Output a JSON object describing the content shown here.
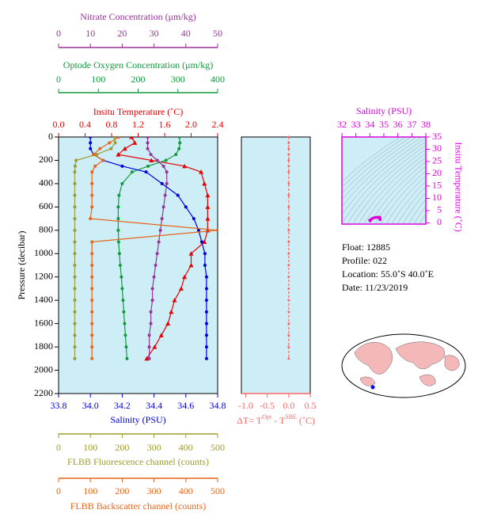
{
  "chart_data": [
    {
      "type": "profile",
      "y_label": "Pressure (decibar)",
      "ylim": [
        0,
        2200
      ],
      "y_inverted": true,
      "yticks": [
        0,
        200,
        400,
        600,
        800,
        1000,
        1200,
        1400,
        1600,
        1800,
        2000,
        2200
      ],
      "background": "#cdeef6",
      "y": [
        0,
        50,
        100,
        150,
        200,
        250,
        300,
        400,
        500,
        600,
        700,
        800,
        900,
        1000,
        1100,
        1200,
        1300,
        1400,
        1500,
        1600,
        1700,
        1800,
        1900
      ],
      "series": [
        {
          "label": "Insitu Temperature (˚C)",
          "side": "top",
          "color": "#e60000",
          "marker": "triangle",
          "xlim": [
            0,
            2.4
          ],
          "xticks": [
            {
              "value": 0,
              "label": "0.0"
            },
            0.4,
            0.8,
            1.2,
            1.6,
            {
              "value": 2,
              "label": "2.0"
            },
            2.4
          ],
          "values": [
            1.1,
            1.15,
            1.0,
            0.9,
            1.4,
            1.9,
            2.15,
            2.2,
            2.25,
            2.25,
            2.25,
            2.25,
            2.2,
            2.0,
            2.0,
            1.9,
            1.85,
            1.75,
            1.7,
            1.65,
            1.55,
            1.45,
            1.33
          ]
        },
        {
          "label": "Optode Oxygen Concentration (μm/kg)",
          "side": "top",
          "color": "#129a3c",
          "marker": "circle",
          "xlim": [
            0,
            400
          ],
          "xticks": [
            0,
            100,
            200,
            300,
            400
          ],
          "values": [
            304,
            305,
            303,
            295,
            270,
            225,
            185,
            160,
            152,
            150,
            150,
            150,
            151,
            153,
            155,
            158,
            160,
            162,
            164,
            166,
            168,
            170,
            172
          ]
        },
        {
          "label": "Nitrate Concentration (μm/kg)",
          "side": "top",
          "color": "#993399",
          "marker": "circle",
          "xlim": [
            0,
            50
          ],
          "xticks": [
            0,
            10,
            20,
            30,
            40,
            50
          ],
          "values": [
            28,
            28,
            28,
            29,
            31,
            33,
            34,
            34,
            33.5,
            33,
            32.5,
            32,
            31.5,
            31,
            30.5,
            30,
            29.5,
            29.5,
            29,
            29,
            28.5,
            28.5,
            28.5
          ]
        },
        {
          "label": "Salinity (PSU)",
          "side": "bottom",
          "color": "#0000dd",
          "marker": "circle",
          "xlim": [
            33.8,
            34.8
          ],
          "xticks": [
            33.8,
            {
              "value": 34,
              "label": "34.0"
            },
            34.2,
            34.4,
            34.6,
            34.8
          ],
          "values": [
            34.0,
            34.0,
            34.0,
            34.02,
            34.08,
            34.2,
            34.35,
            34.45,
            34.55,
            34.6,
            34.65,
            34.68,
            34.7,
            34.72,
            34.72,
            34.73,
            34.73,
            34.73,
            34.73,
            34.73,
            34.73,
            34.73,
            34.73
          ]
        },
        {
          "label": "FLBB Fluorescence channel (counts)",
          "side": "bottom",
          "color": "#9c9c2e",
          "marker": "circle",
          "xlim": [
            0,
            500
          ],
          "xticks": [
            0,
            100,
            200,
            300,
            400,
            500
          ],
          "values": [
            175,
            178,
            165,
            120,
            55,
            52,
            51,
            51,
            51,
            51,
            51,
            51,
            51,
            51,
            51,
            51,
            51,
            51,
            51,
            51,
            51,
            51,
            51
          ]
        },
        {
          "label": "FLBB Backscatter channel (counts)",
          "side": "bottom",
          "color": "#e8651a",
          "marker": "circle",
          "xlim": [
            0,
            500
          ],
          "xticks": [
            0,
            100,
            200,
            300,
            400,
            500
          ],
          "values": [
            190,
            160,
            130,
            110,
            140,
            115,
            105,
            105,
            105,
            105,
            100,
            500,
            105,
            105,
            105,
            105,
            105,
            105,
            105,
            105,
            105,
            105,
            105
          ]
        }
      ]
    },
    {
      "type": "delta",
      "x_label": [
        "ΔT= T",
        "Opt",
        " - T",
        "SBE",
        " (˚C)"
      ],
      "color": "#ff6666",
      "background": "#cdeef6",
      "xlim": [
        -1.1,
        0.5
      ],
      "xticks": [
        {
          "value": -1,
          "label": "-1.0"
        },
        -0.5,
        {
          "value": 0,
          "label": "0.0"
        },
        0.5
      ],
      "ylim": [
        0,
        2200
      ],
      "y": [
        0,
        50,
        100,
        150,
        200,
        250,
        300,
        400,
        500,
        600,
        700,
        800,
        900,
        1000,
        1100,
        1200,
        1300,
        1400,
        1500,
        1600,
        1700,
        1800,
        1900
      ],
      "values": [
        0,
        0,
        0,
        0,
        0,
        0,
        0,
        0,
        0,
        0,
        0,
        0,
        0,
        0,
        0,
        0,
        0,
        0,
        0,
        0,
        0,
        0,
        0
      ]
    },
    {
      "type": "scatter",
      "title": "Salinity (PSU)",
      "y_label": "Insitu Temperature (˚C)",
      "color": "#dd00dd",
      "background": "#cdeef6",
      "xlim": [
        32,
        38
      ],
      "xticks": [
        32,
        33,
        34,
        35,
        36,
        37,
        38
      ],
      "ylim": [
        -0.5,
        35
      ],
      "yticks": [
        0,
        5,
        10,
        15,
        20,
        25,
        30,
        35
      ],
      "x": [
        34.0,
        34.0,
        34.0,
        34.02,
        34.08,
        34.2,
        34.35,
        34.45,
        34.55,
        34.6,
        34.65,
        34.68,
        34.7,
        34.72,
        34.72,
        34.73,
        34.73,
        34.73,
        34.73,
        34.73,
        34.73,
        34.73,
        34.73
      ],
      "values": [
        1.1,
        1.15,
        1.0,
        0.9,
        1.4,
        1.9,
        2.15,
        2.2,
        2.25,
        2.25,
        2.25,
        2.25,
        2.2,
        2.0,
        2.0,
        1.9,
        1.85,
        1.75,
        1.7,
        1.65,
        1.55,
        1.45,
        1.33
      ]
    }
  ],
  "info": {
    "float": "Float:  12885",
    "profile": "Profile:  022",
    "location": "Location:  55.0˚S  40.0˚E",
    "date": "Date:  11/23/2019"
  }
}
